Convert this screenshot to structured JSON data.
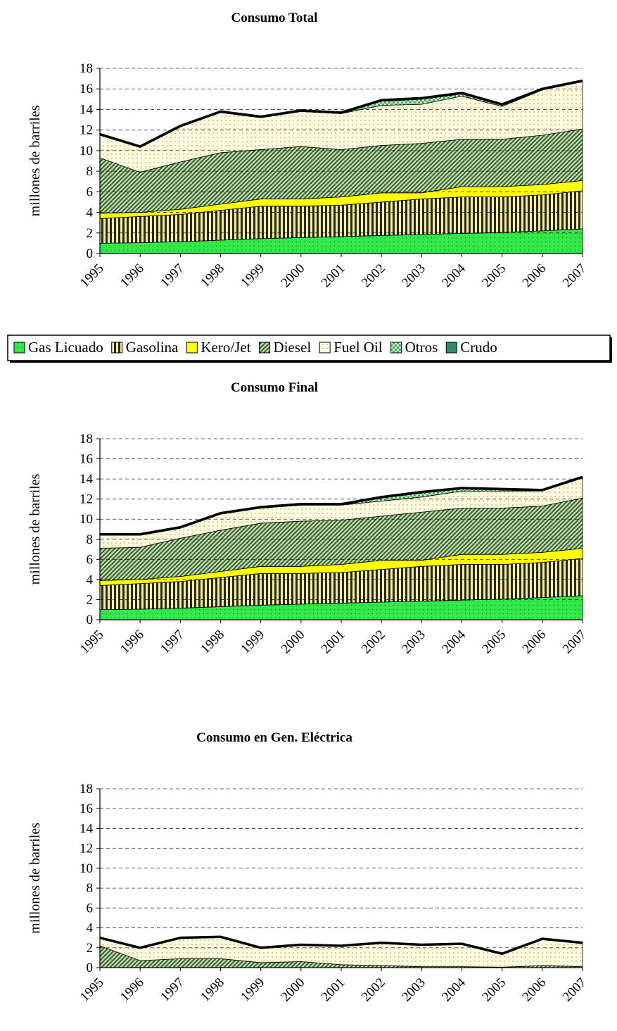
{
  "chart_data": [
    {
      "type": "stacked_area",
      "title": "Consumo Total",
      "y_label": "millones de barriles",
      "categories": [
        "1995",
        "1996",
        "1997",
        "1998",
        "1999",
        "2000",
        "2001",
        "2002",
        "2003",
        "2004",
        "2005",
        "2006",
        "2007"
      ],
      "ylim": [
        0,
        18
      ],
      "yticks": [
        0,
        2,
        4,
        6,
        8,
        10,
        12,
        14,
        16,
        18
      ],
      "grid": true,
      "series": [
        {
          "name": "Gas Licuado",
          "color": "#33e84a",
          "values": [
            1.0,
            1.05,
            1.15,
            1.3,
            1.45,
            1.55,
            1.65,
            1.75,
            1.85,
            1.95,
            2.05,
            2.2,
            2.4
          ]
        },
        {
          "name": "Gasolina",
          "color": "#2b2b00",
          "values": [
            2.4,
            2.55,
            2.65,
            2.9,
            3.15,
            3.05,
            3.05,
            3.25,
            3.45,
            3.55,
            3.45,
            3.5,
            3.7
          ]
        },
        {
          "name": "Kero/Jet",
          "color": "#ffff00",
          "values": [
            0.5,
            0.4,
            0.5,
            0.6,
            0.7,
            0.7,
            0.8,
            0.9,
            0.6,
            1.0,
            1.0,
            1.0,
            1.0
          ]
        },
        {
          "name": "Diesel",
          "color": "#2f5f2f",
          "values": [
            5.4,
            3.9,
            4.6,
            5.0,
            4.8,
            5.1,
            4.6,
            4.6,
            4.8,
            4.6,
            4.6,
            4.8,
            5.0
          ]
        },
        {
          "name": "Fuel Oil",
          "color": "#fffbe0",
          "values": [
            2.2,
            2.4,
            3.4,
            3.9,
            3.1,
            3.4,
            3.5,
            3.9,
            3.8,
            4.2,
            3.2,
            4.4,
            4.6
          ]
        },
        {
          "name": "Otros",
          "color": "#3fae4f",
          "values": [
            0,
            0,
            0,
            0,
            0,
            0,
            0,
            0.4,
            0.5,
            0.2,
            0.1,
            0,
            0
          ]
        },
        {
          "name": "Crudo",
          "color": "#2e8b6e",
          "values": [
            0.1,
            0.1,
            0.1,
            0.1,
            0.1,
            0.1,
            0.1,
            0.1,
            0.1,
            0.1,
            0.1,
            0.1,
            0.1
          ]
        }
      ]
    },
    {
      "type": "stacked_area",
      "title": "Consumo Final",
      "y_label": "millones de barriles",
      "categories": [
        "1995",
        "1996",
        "1997",
        "1998",
        "1999",
        "2000",
        "2001",
        "2002",
        "2003",
        "2004",
        "2005",
        "2006",
        "2007"
      ],
      "ylim": [
        0,
        18
      ],
      "yticks": [
        0,
        2,
        4,
        6,
        8,
        10,
        12,
        14,
        16,
        18
      ],
      "grid": true,
      "series": [
        {
          "values": [
            1.0,
            1.05,
            1.15,
            1.3,
            1.45,
            1.55,
            1.65,
            1.75,
            1.85,
            1.95,
            2.05,
            2.2,
            2.4
          ]
        },
        {
          "values": [
            2.4,
            2.55,
            2.65,
            2.9,
            3.15,
            3.05,
            3.05,
            3.25,
            3.45,
            3.55,
            3.45,
            3.5,
            3.7
          ]
        },
        {
          "values": [
            0.5,
            0.4,
            0.5,
            0.6,
            0.7,
            0.7,
            0.8,
            0.9,
            0.6,
            1.0,
            1.0,
            1.0,
            1.0
          ]
        },
        {
          "values": [
            3.2,
            3.2,
            3.8,
            4.1,
            4.3,
            4.5,
            4.4,
            4.4,
            4.8,
            4.6,
            4.6,
            4.6,
            5.0
          ]
        },
        {
          "values": [
            1.3,
            1.2,
            1.0,
            1.6,
            1.5,
            1.6,
            1.5,
            1.5,
            1.5,
            1.7,
            1.7,
            1.5,
            2.0
          ]
        },
        {
          "values": [
            0,
            0,
            0,
            0,
            0,
            0,
            0,
            0.3,
            0.4,
            0.2,
            0.1,
            0,
            0
          ]
        },
        {
          "values": [
            0.1,
            0.1,
            0.1,
            0.1,
            0.1,
            0.1,
            0.1,
            0.1,
            0.1,
            0.1,
            0.1,
            0.1,
            0.1
          ]
        }
      ]
    },
    {
      "type": "stacked_area",
      "title": "Consumo en Gen. Eléctrica",
      "y_label": "millones de barriles",
      "categories": [
        "1995",
        "1996",
        "1997",
        "1998",
        "1999",
        "2000",
        "2001",
        "2002",
        "2003",
        "2004",
        "2005",
        "2006",
        "2007"
      ],
      "ylim": [
        0,
        18
      ],
      "yticks": [
        0,
        2,
        4,
        6,
        8,
        10,
        12,
        14,
        16,
        18
      ],
      "grid": true,
      "series": [
        {
          "values": [
            0,
            0,
            0,
            0,
            0,
            0,
            0,
            0,
            0,
            0,
            0,
            0,
            0
          ]
        },
        {
          "values": [
            0,
            0,
            0,
            0,
            0,
            0,
            0,
            0,
            0,
            0,
            0,
            0,
            0
          ]
        },
        {
          "values": [
            0,
            0,
            0,
            0,
            0,
            0,
            0,
            0,
            0,
            0,
            0,
            0,
            0
          ]
        },
        {
          "values": [
            2.2,
            0.7,
            0.9,
            0.9,
            0.5,
            0.6,
            0.3,
            0.2,
            0.1,
            0.1,
            0.05,
            0.2,
            0.1
          ]
        },
        {
          "values": [
            0.8,
            1.3,
            2.1,
            2.2,
            1.5,
            1.7,
            1.9,
            2.3,
            2.2,
            2.3,
            1.35,
            2.7,
            2.4
          ]
        },
        {
          "values": [
            0,
            0,
            0,
            0,
            0,
            0,
            0,
            0,
            0,
            0,
            0,
            0,
            0
          ]
        },
        {
          "values": [
            0,
            0,
            0,
            0,
            0,
            0,
            0,
            0,
            0,
            0,
            0,
            0,
            0
          ]
        }
      ]
    }
  ]
}
